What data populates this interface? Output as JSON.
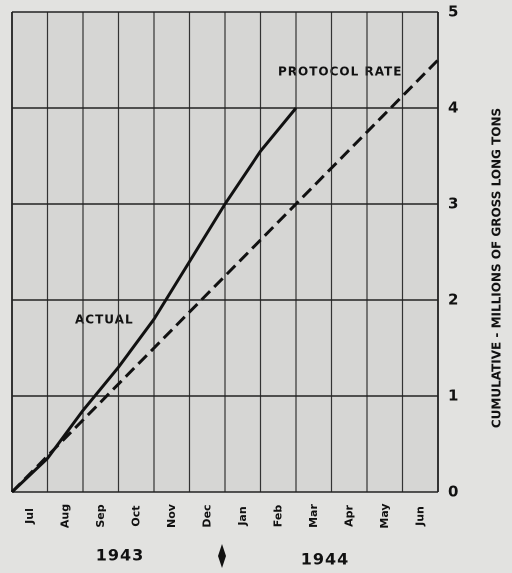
{
  "chart_data": {
    "type": "line",
    "y_axis_label": "CUMULATIVE - MILLIONS OF GROSS LONG TONS",
    "categories": [
      "Jul",
      "Aug",
      "Sep",
      "Oct",
      "Nov",
      "Dec",
      "Jan",
      "Feb",
      "Mar",
      "Apr",
      "May",
      "Jun"
    ],
    "years": [
      "1943",
      "1944"
    ],
    "xlim": [
      0,
      12
    ],
    "ylim": [
      0,
      5
    ],
    "yticks": [
      0,
      1,
      2,
      3,
      4,
      5
    ],
    "grid": true,
    "series": [
      {
        "name": "ACTUAL",
        "color": "#111111",
        "dashed": false,
        "x": [
          0,
          1,
          2,
          3,
          4,
          5,
          6,
          7,
          8
        ],
        "values": [
          0,
          0.35,
          0.85,
          1.3,
          1.8,
          2.4,
          3.0,
          3.55,
          4.0
        ]
      },
      {
        "name": "PROTOCOL RATE",
        "color": "#111111",
        "dashed": true,
        "x": [
          0,
          12
        ],
        "values": [
          0,
          4.5
        ]
      }
    ]
  }
}
